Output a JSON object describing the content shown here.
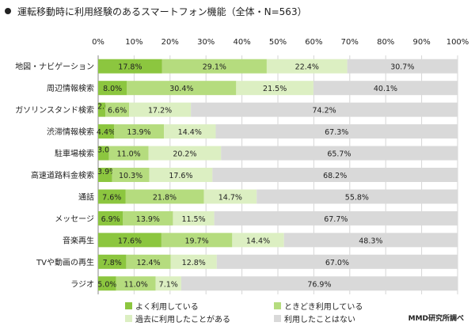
{
  "title": "運転移動時に利用経験のあるスマートフォン機能（全体・N=563）",
  "source": "MMD研究所調べ",
  "chart_data": {
    "type": "bar",
    "orientation": "horizontal",
    "stacked": true,
    "title": "運転移動時に利用経験のあるスマートフォン機能（全体・N=563）",
    "xlim": [
      0,
      100
    ],
    "x_ticks": [
      "0%",
      "10%",
      "20%",
      "30%",
      "40%",
      "50%",
      "60%",
      "70%",
      "80%",
      "90%",
      "100%"
    ],
    "grid": true,
    "legend_position": "bottom",
    "categories": [
      "地図・ナビゲーション",
      "周辺情報検索",
      "ガソリンスタンド検索",
      "渋滞情報検索",
      "駐車場検索",
      "高速道路料金検索",
      "通話",
      "メッセージ",
      "音楽再生",
      "TVや動画の再生",
      "ラジオ"
    ],
    "series": [
      {
        "name": "よく利用している",
        "color": "#8cc63f",
        "values": [
          17.8,
          8.0,
          2.0,
          4.4,
          3.0,
          3.9,
          7.6,
          6.9,
          17.6,
          7.8,
          5.0
        ]
      },
      {
        "name": "ときどき利用している",
        "color": "#b5dc7e",
        "values": [
          29.1,
          30.4,
          6.6,
          13.9,
          11.0,
          10.3,
          21.8,
          13.9,
          19.7,
          12.4,
          11.0
        ]
      },
      {
        "name": "過去に利用したことがある",
        "color": "#dcefc2",
        "values": [
          22.4,
          21.5,
          17.2,
          14.4,
          20.2,
          17.6,
          14.7,
          11.5,
          14.4,
          12.8,
          7.1
        ]
      },
      {
        "name": "利用したことはない",
        "color": "#d9d9d9",
        "values": [
          30.7,
          40.1,
          74.2,
          67.3,
          65.7,
          68.2,
          55.8,
          67.7,
          48.3,
          67.0,
          76.9
        ]
      }
    ]
  }
}
